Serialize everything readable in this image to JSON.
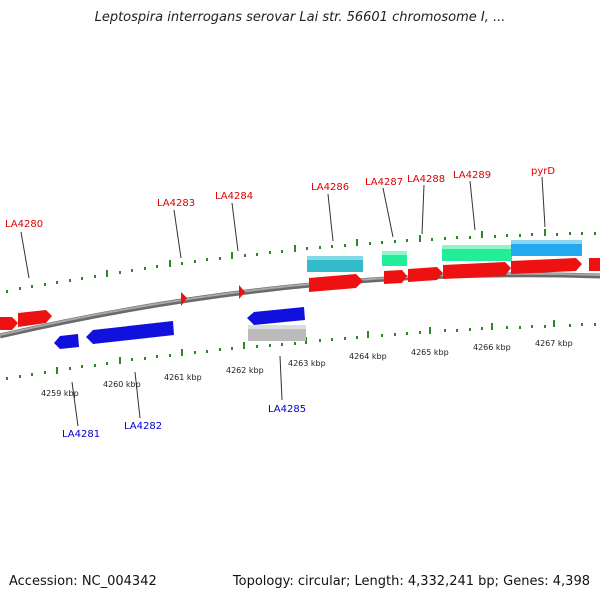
{
  "title": "Leptospira interrogans serovar Lai str. 56601 chromosome I, ...",
  "footer": {
    "accession": "Accession: NC_004342",
    "summary": "Topology: circular; Length: 4,332,241 bp; Genes: 4,398"
  },
  "colors": {
    "forward_gene": "#ee1111",
    "reverse_gene": "#1111dd",
    "cyan_feature": "#33bbcc",
    "green_feature": "#22ee99",
    "sky_feature": "#22aaee",
    "grey_feature": "#bbbbbb",
    "backbone": "#888888",
    "tick": "#2a8a2a",
    "label_forward": "#e00000",
    "label_reverse": "#0000cc"
  },
  "top_labels": [
    "LA4280",
    "LA4283",
    "LA4284",
    "LA4286",
    "LA4287",
    "LA4288",
    "LA4289",
    "pyrD"
  ],
  "bottom_labels": [
    "LA4281",
    "LA4282",
    "LA4285"
  ],
  "kbp_labels": [
    "4259 kbp",
    "4260 kbp",
    "4261 kbp",
    "4262 kbp",
    "4263 kbp",
    "4264 kbp",
    "4265 kbp",
    "4266 kbp",
    "4267 kbp"
  ]
}
